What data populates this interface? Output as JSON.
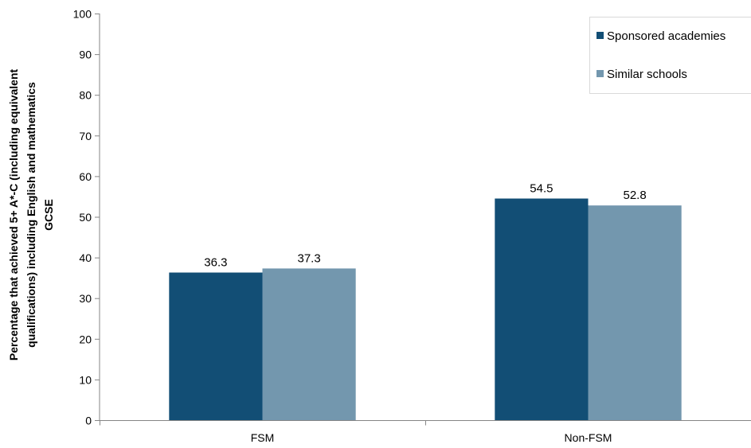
{
  "chart_data": {
    "type": "bar",
    "categories": [
      "FSM",
      "Non-FSM"
    ],
    "series": [
      {
        "name": "Sponsored academies",
        "values": [
          36.3,
          54.5
        ],
        "color": "#124e75"
      },
      {
        "name": "Similar schools",
        "values": [
          37.3,
          52.8
        ],
        "color": "#7397ae"
      }
    ],
    "ylabel": "Percentage that achieved 5+ A*-C (including equivalent qualifications) including English and mathematics GCSE",
    "ylabel_lines": [
      "Percentage that achieved 5+ A*-C (including equivalent",
      "qualifications) including English and mathematics",
      "GCSE"
    ],
    "xlabel": "",
    "ylim": [
      0,
      100
    ],
    "yticks": [
      0,
      10,
      20,
      30,
      40,
      50,
      60,
      70,
      80,
      90,
      100
    ],
    "grid": false,
    "legend_position": "top-right",
    "data_labels": true
  }
}
